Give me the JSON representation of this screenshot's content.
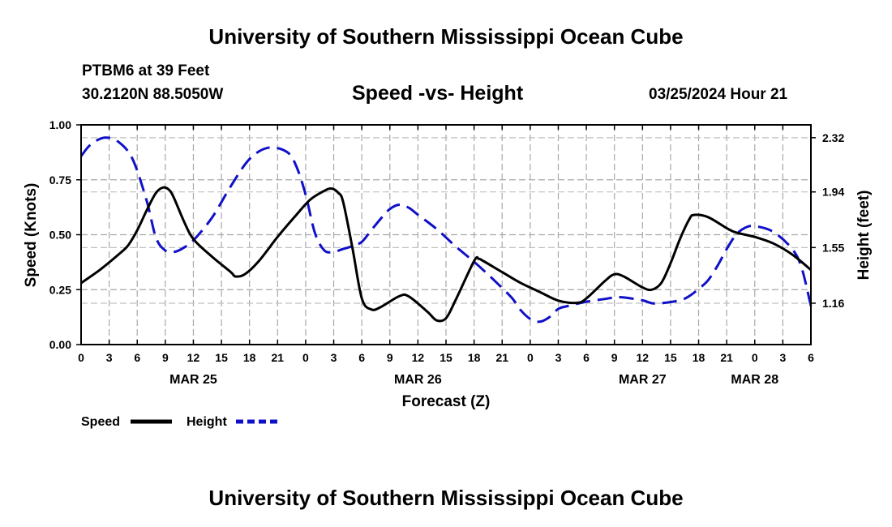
{
  "header": {
    "top_title": "University of Southern Mississippi Ocean Cube",
    "bottom_title": "University of Southern Mississippi Ocean Cube",
    "station": "PTBM6 at 39 Feet",
    "coords": "30.2120N  88.5050W",
    "datetime": "03/25/2024 Hour 21"
  },
  "chart_data": {
    "type": "line",
    "title": "Speed -vs- Height",
    "xlabel": "Forecast (Z)",
    "ylabel": "Speed (Knots)",
    "y2label": "Height (feet)",
    "xlim_hours": [
      0,
      78
    ],
    "ylim": [
      0,
      1.0
    ],
    "y2lim": [
      0.87,
      2.41
    ],
    "grid": true,
    "x_ticks": [
      {
        "h": 0,
        "label": "0"
      },
      {
        "h": 3,
        "label": "3"
      },
      {
        "h": 6,
        "label": "6"
      },
      {
        "h": 9,
        "label": "9"
      },
      {
        "h": 12,
        "label": "12"
      },
      {
        "h": 15,
        "label": "15"
      },
      {
        "h": 18,
        "label": "18"
      },
      {
        "h": 21,
        "label": "21"
      },
      {
        "h": 24,
        "label": "0"
      },
      {
        "h": 27,
        "label": "3"
      },
      {
        "h": 30,
        "label": "6"
      },
      {
        "h": 33,
        "label": "9"
      },
      {
        "h": 36,
        "label": "12"
      },
      {
        "h": 39,
        "label": "15"
      },
      {
        "h": 42,
        "label": "18"
      },
      {
        "h": 45,
        "label": "21"
      },
      {
        "h": 48,
        "label": "0"
      },
      {
        "h": 51,
        "label": "3"
      },
      {
        "h": 54,
        "label": "6"
      },
      {
        "h": 57,
        "label": "9"
      },
      {
        "h": 60,
        "label": "12"
      },
      {
        "h": 63,
        "label": "15"
      },
      {
        "h": 66,
        "label": "18"
      },
      {
        "h": 69,
        "label": "21"
      },
      {
        "h": 72,
        "label": "0"
      },
      {
        "h": 75,
        "label": "3"
      },
      {
        "h": 78,
        "label": "6"
      }
    ],
    "date_labels": [
      {
        "h": 12,
        "label": "MAR 25"
      },
      {
        "h": 36,
        "label": "MAR 26"
      },
      {
        "h": 60,
        "label": "MAR 27"
      },
      {
        "h": 72,
        "label": "MAR 28"
      }
    ],
    "y_ticks": [
      0.0,
      0.25,
      0.5,
      0.75,
      1.0
    ],
    "y_tick_labels": [
      "0.00",
      "0.25",
      "0.50",
      "0.75",
      "1.00"
    ],
    "y2_ticks": [
      1.16,
      1.55,
      1.94,
      2.32
    ],
    "y2_tick_labels": [
      "1.16",
      "1.55",
      "1.94",
      "2.32"
    ],
    "legend_position": "bottom-left",
    "series": [
      {
        "name": "Speed",
        "axis": "left",
        "color": "#000000",
        "dash": "solid",
        "x": [
          0,
          2,
          4,
          5,
          6,
          7,
          8,
          8.8,
          9.5,
          10,
          11,
          12,
          14,
          16,
          16.5,
          17.5,
          19,
          21,
          23,
          24.5,
          26,
          26.8,
          27.5,
          28,
          29,
          30,
          31,
          32,
          34,
          35,
          37,
          38,
          39,
          40,
          42,
          42.5,
          43,
          45,
          47,
          49,
          51,
          53,
          54,
          56,
          57,
          58,
          60,
          61,
          62,
          63,
          64,
          65,
          65.5,
          67,
          69,
          70,
          72,
          74,
          76,
          78
        ],
        "values": [
          0.28,
          0.34,
          0.41,
          0.45,
          0.52,
          0.61,
          0.69,
          0.715,
          0.7,
          0.66,
          0.56,
          0.48,
          0.4,
          0.33,
          0.31,
          0.32,
          0.38,
          0.49,
          0.59,
          0.66,
          0.7,
          0.71,
          0.69,
          0.65,
          0.44,
          0.21,
          0.16,
          0.17,
          0.22,
          0.22,
          0.15,
          0.11,
          0.12,
          0.2,
          0.38,
          0.39,
          0.38,
          0.33,
          0.28,
          0.24,
          0.2,
          0.19,
          0.21,
          0.29,
          0.32,
          0.31,
          0.26,
          0.25,
          0.28,
          0.37,
          0.48,
          0.57,
          0.59,
          0.58,
          0.53,
          0.51,
          0.49,
          0.46,
          0.41,
          0.34
        ]
      },
      {
        "name": "Height",
        "axis": "right",
        "color": "#1010c8",
        "dash": "dashed",
        "x": [
          0,
          1,
          2.5,
          4,
          5.5,
          7,
          8,
          9,
          10,
          11,
          12,
          14,
          16,
          18,
          20,
          22,
          23,
          24,
          25,
          26,
          27,
          28,
          29,
          30,
          31,
          32,
          33,
          34,
          35,
          36,
          38,
          40,
          42,
          44,
          46,
          47,
          48,
          49,
          50,
          51,
          52,
          54,
          56,
          57,
          58,
          60,
          61,
          62,
          64,
          65,
          66,
          67,
          68,
          69,
          70,
          71,
          72,
          74,
          76,
          77,
          78
        ],
        "values": [
          2.19,
          2.27,
          2.32,
          2.29,
          2.17,
          1.88,
          1.62,
          1.53,
          1.52,
          1.55,
          1.6,
          1.76,
          1.98,
          2.17,
          2.25,
          2.22,
          2.12,
          1.92,
          1.65,
          1.53,
          1.52,
          1.54,
          1.56,
          1.59,
          1.67,
          1.75,
          1.82,
          1.85,
          1.83,
          1.78,
          1.68,
          1.56,
          1.45,
          1.33,
          1.2,
          1.11,
          1.05,
          1.03,
          1.06,
          1.12,
          1.14,
          1.17,
          1.19,
          1.2,
          1.2,
          1.18,
          1.16,
          1.16,
          1.18,
          1.21,
          1.26,
          1.32,
          1.42,
          1.54,
          1.64,
          1.69,
          1.7,
          1.66,
          1.54,
          1.41,
          1.14
        ]
      }
    ]
  }
}
